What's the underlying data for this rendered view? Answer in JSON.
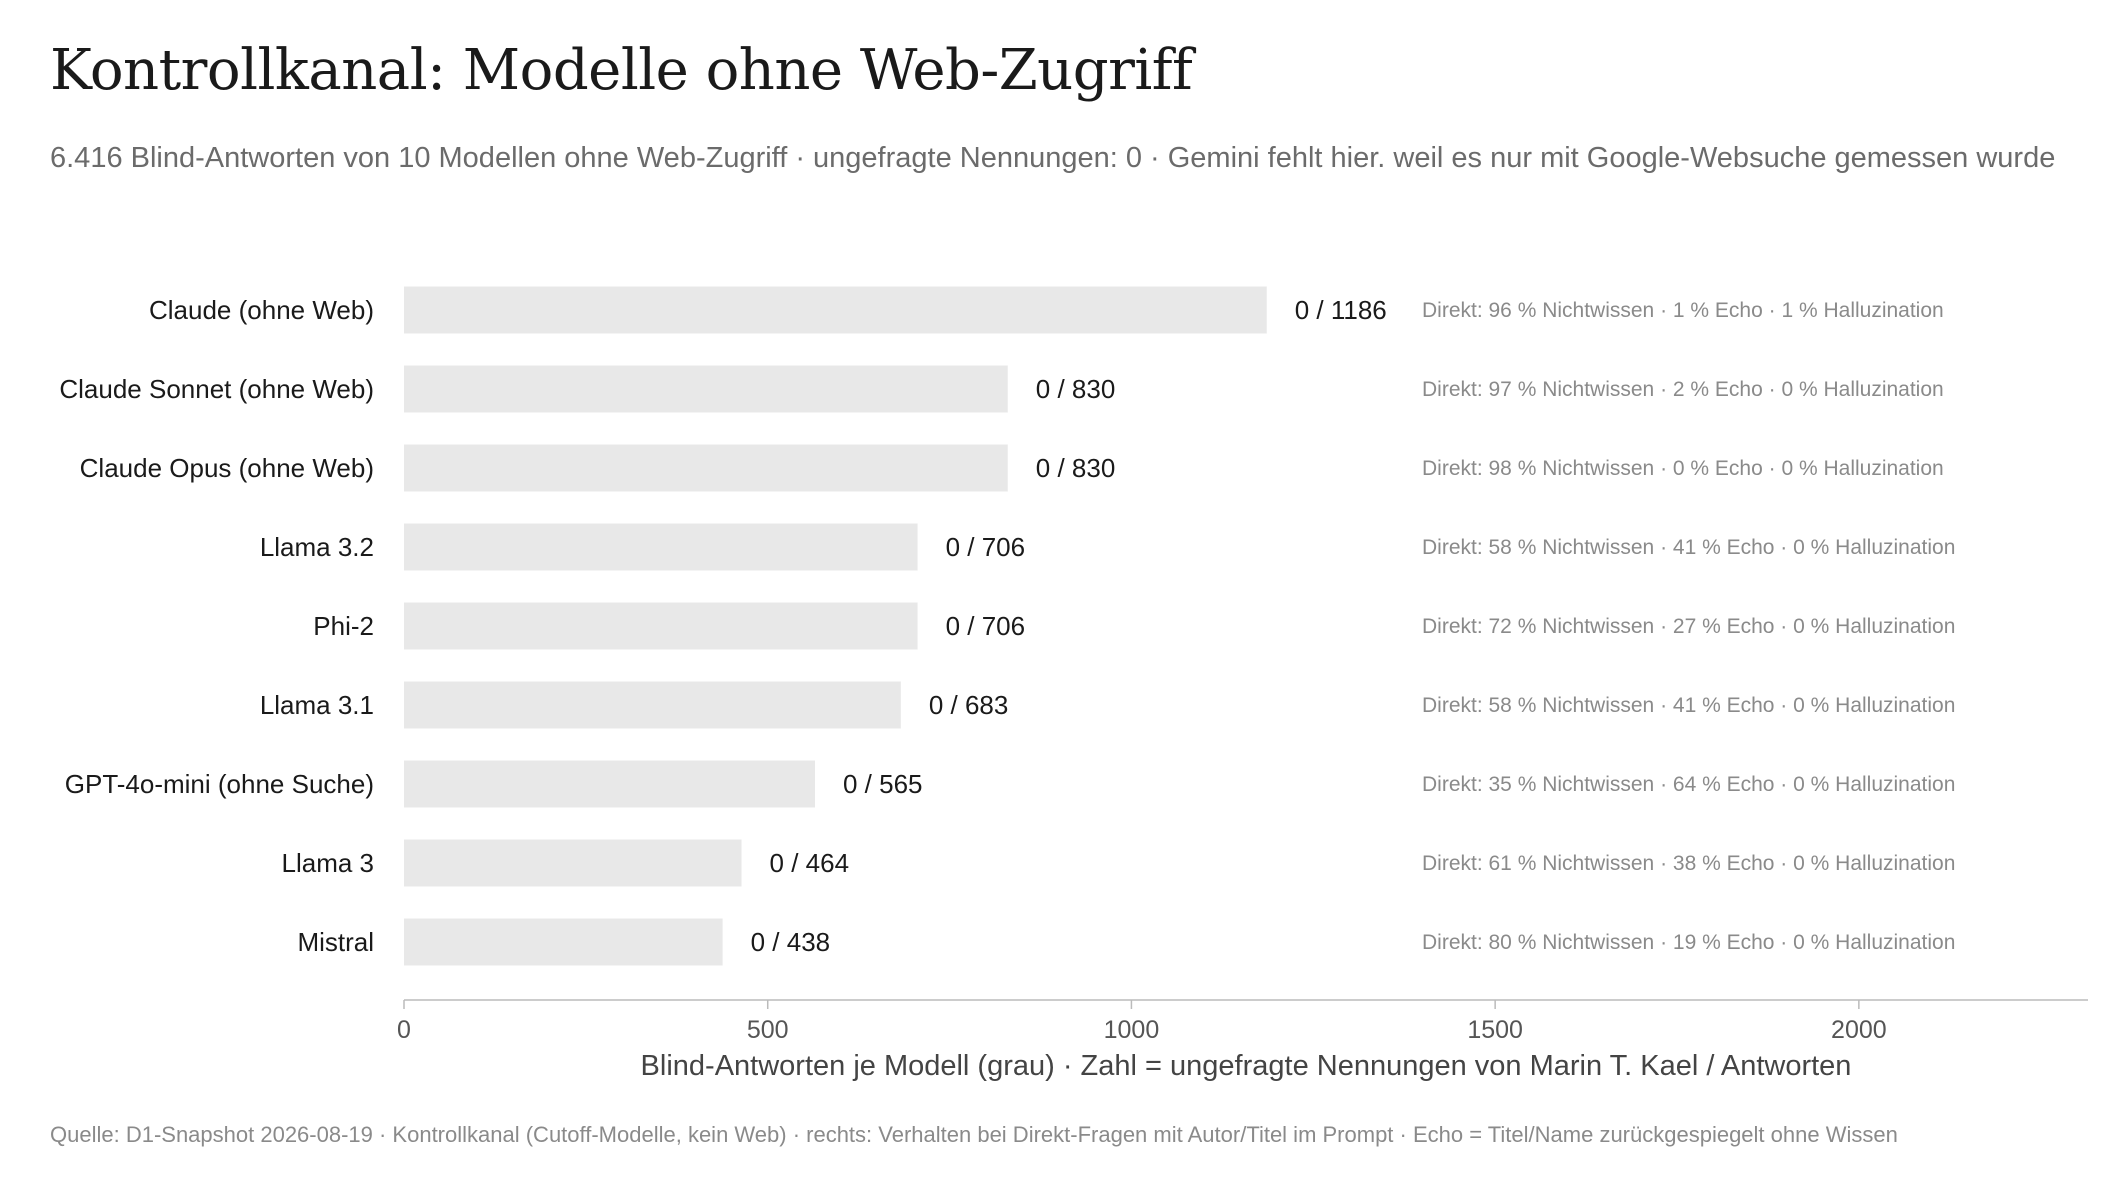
{
  "header": {
    "title": "Kontrollkanal: Modelle ohne Web-Zugriff",
    "subtitle": "6.416 Blind-Antworten von 10 Modellen ohne Web-Zugriff · ungefragte Nennungen: 0 · Gemini fehlt hier. weil es nur mit Google-Websuche gemessen wurde"
  },
  "footer": {
    "source": "Quelle: D1-Snapshot 2026-08-19 · Kontrollkanal (Cutoff-Modelle, kein Web) · rechts: Verhalten bei Direkt-Fragen mit Autor/Titel im Prompt · Echo = Titel/Name zurückgespiegelt ohne Wissen"
  },
  "colors": {
    "bar": "#e8e8e8",
    "label": "#1a1a1a",
    "note": "#8a8a8a",
    "axis": "#bbbbbb",
    "tick_label": "#555555",
    "axis_title": "#444444"
  },
  "chart_data": {
    "type": "bar",
    "orientation": "horizontal",
    "categories": [
      "Claude (ohne Web)",
      "Claude Sonnet (ohne Web)",
      "Claude Opus (ohne Web)",
      "Llama 3.2",
      "Phi-2",
      "Llama 3.1",
      "GPT-4o-mini (ohne Suche)",
      "Llama 3",
      "Mistral"
    ],
    "values": [
      1186,
      830,
      830,
      706,
      706,
      683,
      565,
      464,
      438
    ],
    "mentions": [
      0,
      0,
      0,
      0,
      0,
      0,
      0,
      0,
      0
    ],
    "bar_labels": [
      "0 / 1186",
      "0 / 830",
      "0 / 830",
      "0 / 706",
      "0 / 706",
      "0 / 683",
      "0 / 565",
      "0 / 464",
      "0 / 438"
    ],
    "notes": [
      "Direkt: 96 % Nichtwissen · 1 % Echo · 1 % Halluzination",
      "Direkt: 97 % Nichtwissen · 2 % Echo · 0 % Halluzination",
      "Direkt: 98 % Nichtwissen · 0 % Echo · 0 % Halluzination",
      "Direkt: 58 % Nichtwissen · 41 % Echo · 0 % Halluzination",
      "Direkt: 72 % Nichtwissen · 27 % Echo · 0 % Halluzination",
      "Direkt: 58 % Nichtwissen · 41 % Echo · 0 % Halluzination",
      "Direkt: 35 % Nichtwissen · 64 % Echo · 0 % Halluzination",
      "Direkt: 61 % Nichtwissen · 38 % Echo · 0 % Halluzination",
      "Direkt: 80 % Nichtwissen · 19 % Echo · 0 % Halluzination"
    ],
    "xlabel": "Blind-Antworten je Modell (grau) · Zahl = ungefragte Nennungen von Marin T. Kael / Antworten",
    "xlim": [
      0,
      2315
    ],
    "xticks": [
      0,
      500,
      1000,
      1500,
      2000
    ],
    "grid": false
  }
}
